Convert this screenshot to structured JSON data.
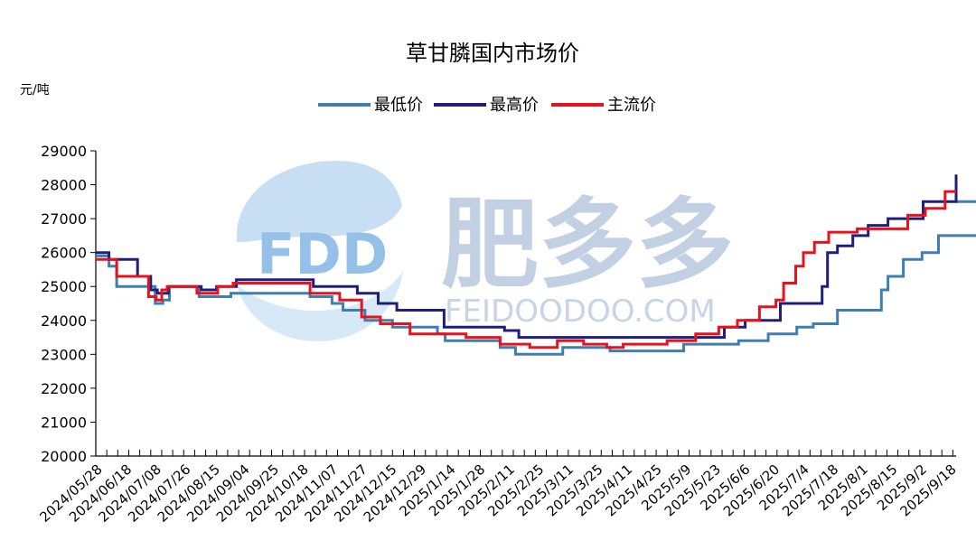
{
  "chart_data": {
    "type": "line",
    "title": "草甘膦国内市场价",
    "unit_label": "元/吨",
    "ylim": [
      20000,
      29000
    ],
    "yticks": [
      29000,
      28000,
      27000,
      26000,
      25000,
      24000,
      23000,
      22000,
      21000,
      20000
    ],
    "x_tick_labels": [
      "2024/05/28",
      "2024/06/18",
      "2024/07/08",
      "2024/07/26",
      "2024/08/15",
      "2024/09/04",
      "2024/09/25",
      "2024/10/18",
      "2024/11/07",
      "2024/11/27",
      "2024/12/15",
      "2024/12/29",
      "2025/1/14",
      "2025/1/28",
      "2025/2/11",
      "2025/2/25",
      "2025/3/11",
      "2025/3/25",
      "2025/4/11",
      "2025/4/25",
      "2025/5/9",
      "2025/5/23",
      "2025/6/6",
      "2025/6/20",
      "2025/7/4",
      "2025/7/18",
      "2025/8/1",
      "2025/8/15",
      "2025/9/2",
      "2025/9/18"
    ],
    "grid": false,
    "legend_position": "top",
    "series": [
      {
        "name": "最低价",
        "color": "#3E7FB0",
        "steps": [
          [
            0,
            25900
          ],
          [
            1.2,
            25600
          ],
          [
            1.9,
            25000
          ],
          [
            5.4,
            24500
          ],
          [
            6.1,
            24600
          ],
          [
            6.7,
            25000
          ],
          [
            9.4,
            24700
          ],
          [
            12.3,
            24800
          ],
          [
            19.5,
            24700
          ],
          [
            21.5,
            24500
          ],
          [
            22.5,
            24300
          ],
          [
            24.5,
            24000
          ],
          [
            27.0,
            23800
          ],
          [
            31.1,
            23600
          ],
          [
            31.8,
            23400
          ],
          [
            35.1,
            23400
          ],
          [
            36.8,
            23200
          ],
          [
            38.2,
            23000
          ],
          [
            42.5,
            23200
          ],
          [
            46.8,
            23100
          ],
          [
            49.5,
            23100
          ],
          [
            53.5,
            23300
          ],
          [
            56.1,
            23300
          ],
          [
            58.5,
            23400
          ],
          [
            61.2,
            23600
          ],
          [
            63.8,
            23800
          ],
          [
            65.3,
            23900
          ],
          [
            67.5,
            24300
          ],
          [
            71.5,
            24900
          ],
          [
            72.1,
            25300
          ],
          [
            73.5,
            25800
          ],
          [
            75.2,
            26000
          ],
          [
            76.7,
            26500
          ],
          [
            82.5,
            26900
          ],
          [
            83.5,
            27000
          ],
          [
            86.2,
            27200
          ],
          [
            87.6,
            27500
          ]
        ]
      },
      {
        "name": "最高价",
        "color": "#1F1F7A",
        "steps": [
          [
            0,
            26000
          ],
          [
            1.2,
            25800
          ],
          [
            3.8,
            25300
          ],
          [
            5.0,
            24900
          ],
          [
            5.6,
            24800
          ],
          [
            6.6,
            25000
          ],
          [
            9.6,
            24900
          ],
          [
            11.0,
            25000
          ],
          [
            12.8,
            25200
          ],
          [
            19.8,
            25000
          ],
          [
            23.8,
            24800
          ],
          [
            25.7,
            24500
          ],
          [
            27.4,
            24300
          ],
          [
            31.7,
            23800
          ],
          [
            35.0,
            23800
          ],
          [
            37.2,
            23700
          ],
          [
            38.5,
            23500
          ],
          [
            46.0,
            23500
          ],
          [
            49.0,
            23500
          ],
          [
            53.0,
            23500
          ],
          [
            57.2,
            23800
          ],
          [
            59.1,
            24000
          ],
          [
            62.3,
            24500
          ],
          [
            66.1,
            25000
          ],
          [
            66.6,
            26000
          ],
          [
            67.5,
            26200
          ],
          [
            68.9,
            26500
          ],
          [
            70.3,
            26800
          ],
          [
            72.1,
            27000
          ],
          [
            75.3,
            27500
          ],
          [
            78.3,
            28300
          ]
        ]
      },
      {
        "name": "主流价",
        "color": "#E8111E",
        "steps": [
          [
            0,
            25800
          ],
          [
            1.5,
            25800
          ],
          [
            1.9,
            25300
          ],
          [
            4.8,
            24700
          ],
          [
            5.5,
            24600
          ],
          [
            6.0,
            24900
          ],
          [
            6.5,
            25000
          ],
          [
            9.2,
            24800
          ],
          [
            11.1,
            25000
          ],
          [
            12.5,
            25100
          ],
          [
            19.5,
            24800
          ],
          [
            21.0,
            24800
          ],
          [
            22.2,
            24600
          ],
          [
            24.2,
            24100
          ],
          [
            25.9,
            23900
          ],
          [
            28.6,
            23600
          ],
          [
            31.6,
            23600
          ],
          [
            33.7,
            23500
          ],
          [
            35.6,
            23500
          ],
          [
            36.8,
            23300
          ],
          [
            39.5,
            23200
          ],
          [
            42.0,
            23400
          ],
          [
            44.4,
            23300
          ],
          [
            46.5,
            23200
          ],
          [
            48.0,
            23300
          ],
          [
            52.0,
            23400
          ],
          [
            54.6,
            23600
          ],
          [
            56.7,
            23800
          ],
          [
            58.4,
            24000
          ],
          [
            60.4,
            24400
          ],
          [
            61.9,
            24600
          ],
          [
            62.6,
            25100
          ],
          [
            63.7,
            25600
          ],
          [
            64.4,
            26000
          ],
          [
            65.4,
            26300
          ],
          [
            66.7,
            26600
          ],
          [
            69.3,
            26700
          ],
          [
            73.9,
            27100
          ],
          [
            75.5,
            27300
          ],
          [
            77.3,
            27800
          ]
        ]
      }
    ]
  },
  "watermark": {
    "logo_text": "FDD",
    "brand_cn": "肥多多",
    "brand_en": "FEIDOODOO.COM"
  }
}
